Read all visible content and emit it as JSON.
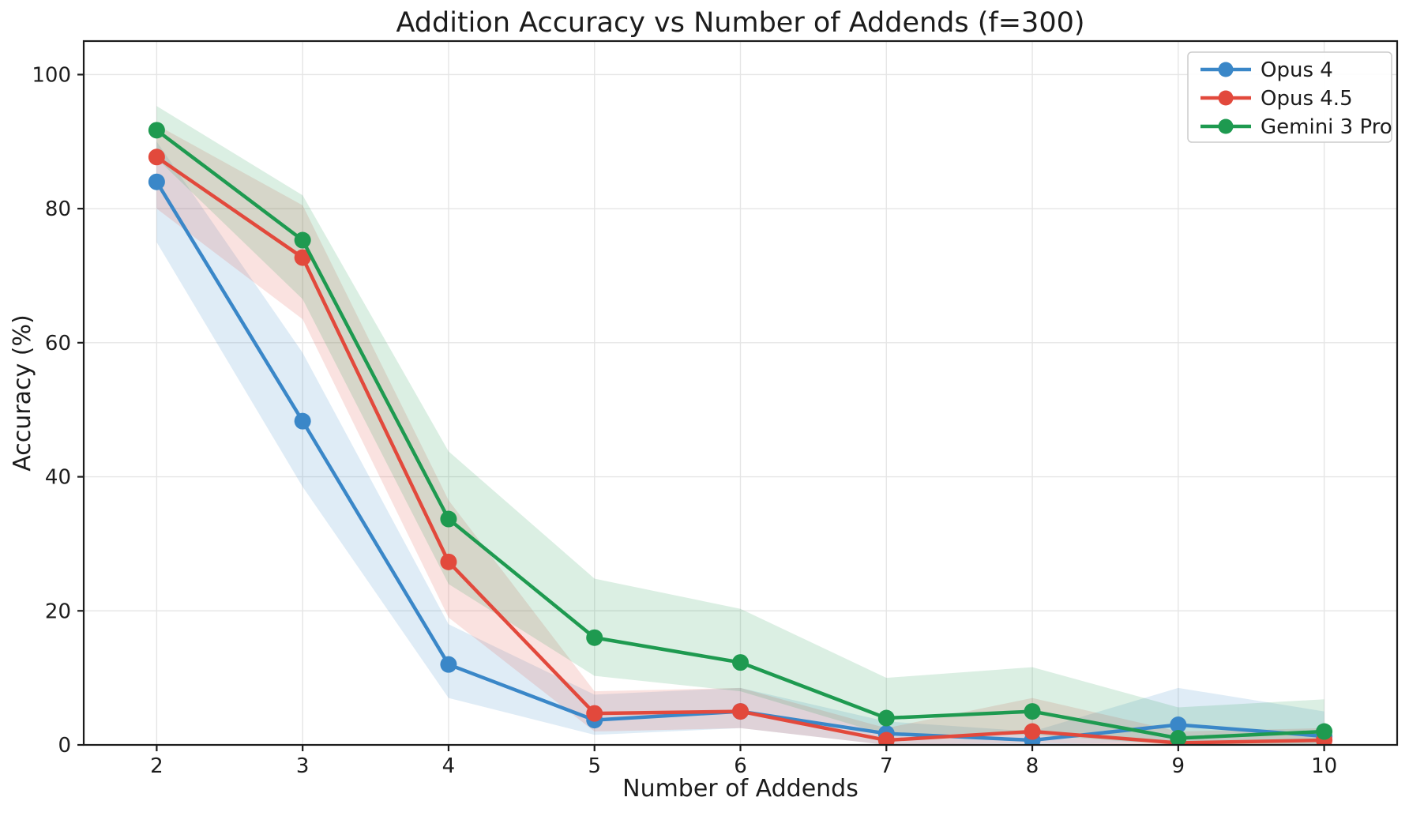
{
  "figure": {
    "background": "#ffffff",
    "text_color": "#1c1c1c",
    "grid_color": "#e5e5e5",
    "spine_color": "#1c1c1c",
    "band_opacity": 0.16
  },
  "chart_data": {
    "type": "line",
    "title": "Addition Accuracy vs Number of Addends (f=300)",
    "xlabel": "Number of Addends",
    "ylabel": "Accuracy (%)",
    "x": [
      2,
      3,
      4,
      5,
      6,
      7,
      8,
      9,
      10
    ],
    "xticks": [
      2,
      3,
      4,
      5,
      6,
      7,
      8,
      9,
      10
    ],
    "yticks": [
      0,
      20,
      40,
      60,
      80,
      100
    ],
    "xlim": [
      1.5,
      10.5
    ],
    "ylim": [
      0,
      105
    ],
    "grid": true,
    "legend_position": "upper right",
    "series": [
      {
        "name": "Opus 4",
        "color": "#3a87c8",
        "values": [
          84.0,
          48.3,
          12.0,
          3.7,
          5.0,
          1.7,
          0.7,
          3.0,
          1.3
        ],
        "band_low": [
          75.0,
          38.5,
          7.0,
          1.5,
          2.5,
          0,
          0,
          0.5,
          0
        ],
        "band_high": [
          90.0,
          58.5,
          18.0,
          7.5,
          8.5,
          3.5,
          2.0,
          8.5,
          5.0
        ]
      },
      {
        "name": "Opus 4.5",
        "color": "#e2493c",
        "values": [
          87.7,
          72.7,
          27.3,
          4.7,
          5.0,
          0.7,
          2.0,
          0.3,
          0.7
        ],
        "band_low": [
          80.0,
          63.5,
          19.0,
          2.0,
          2.5,
          0,
          0.3,
          0,
          0
        ],
        "band_high": [
          92.5,
          80.5,
          36.5,
          8.0,
          8.5,
          2.5,
          7.0,
          2.0,
          2.5
        ]
      },
      {
        "name": "Gemini 3 Pro",
        "color": "#1e9a50",
        "values": [
          91.7,
          75.3,
          33.7,
          16.0,
          12.3,
          4.0,
          5.0,
          1.0,
          2.0
        ],
        "band_low": [
          87.5,
          66.5,
          24.0,
          10.3,
          8.0,
          1.5,
          1.5,
          0,
          0
        ],
        "band_high": [
          95.3,
          82.0,
          43.8,
          24.8,
          20.3,
          10.0,
          11.6,
          5.6,
          6.8
        ]
      }
    ]
  }
}
